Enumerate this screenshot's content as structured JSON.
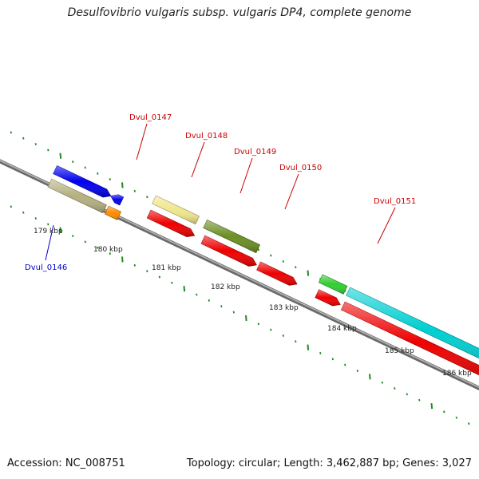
{
  "title": "Desulfovibrio vulgaris subsp. vulgaris DP4, complete genome",
  "footer": {
    "accession": "Accession: NC_008751",
    "topology": "Topology: circular; Length: 3,462,887 bp; Genes: 3,027"
  },
  "colors": {
    "backbone": "#808080",
    "tick_green": "#1e8c1e",
    "label_red": "#cc0000",
    "label_blue": "#0000cc"
  },
  "kbp_labels": [
    {
      "text": "179 kbp"
    },
    {
      "text": "180 kbp"
    },
    {
      "text": "181 kbp"
    },
    {
      "text": "182 kbp"
    },
    {
      "text": "183 kbp"
    },
    {
      "text": "184 kbp"
    },
    {
      "text": "185 kbp"
    },
    {
      "text": "186 kbp"
    }
  ],
  "gene_labels": [
    {
      "text": "Dvul_0146",
      "color": "#0000cc"
    },
    {
      "text": "Dvul_0147",
      "color": "#cc0000"
    },
    {
      "text": "Dvul_0148",
      "color": "#cc0000"
    },
    {
      "text": "Dvul_0149",
      "color": "#cc0000"
    },
    {
      "text": "Dvul_0150",
      "color": "#cc0000"
    },
    {
      "text": "Dvul_0151",
      "color": "#cc0000"
    }
  ],
  "features": [
    {
      "name": "feature-blue-left",
      "color": "#0000ee"
    },
    {
      "name": "feature-blue-left-arrow",
      "color": "#0000ee"
    },
    {
      "name": "feature-khaki-left",
      "color": "#b5b080"
    },
    {
      "name": "feature-orange-left",
      "color": "#ff8c00"
    },
    {
      "name": "feature-dvul-0147-khaki",
      "color": "#f0e68c"
    },
    {
      "name": "feature-dvul-0147-cds",
      "color": "#ee0000"
    },
    {
      "name": "feature-dvul-0148-olive",
      "color": "#6b8e23"
    },
    {
      "name": "feature-dvul-0148-cds",
      "color": "#ee0000"
    },
    {
      "name": "feature-dvul-0149-cds",
      "color": "#ee0000"
    },
    {
      "name": "feature-dvul-0150-green",
      "color": "#32cd32"
    },
    {
      "name": "feature-dvul-0150-cds",
      "color": "#ee0000"
    },
    {
      "name": "feature-dvul-0151-cyan",
      "color": "#00ced1"
    },
    {
      "name": "feature-dvul-0151-cds",
      "color": "#ee0000"
    },
    {
      "name": "feature-blue-right",
      "color": "#0000ee"
    },
    {
      "name": "feature-gray-right",
      "color": "#c8c8c8"
    }
  ]
}
